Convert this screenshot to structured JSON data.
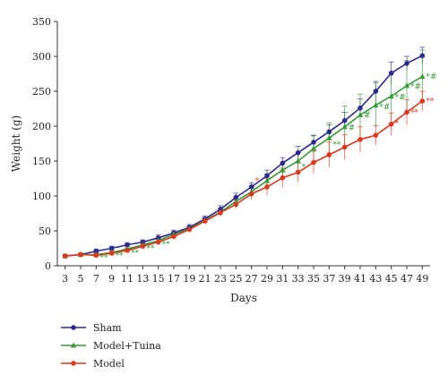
{
  "chart_data": {
    "type": "line",
    "xlabel": "Days",
    "ylabel": "Weight (g)",
    "x": [
      3,
      5,
      7,
      9,
      11,
      13,
      15,
      17,
      19,
      21,
      23,
      25,
      27,
      29,
      31,
      33,
      35,
      37,
      39,
      41,
      43,
      45,
      47,
      49
    ],
    "ylim": [
      0,
      350
    ],
    "yticks": [
      0,
      50,
      100,
      150,
      200,
      250,
      300,
      350
    ],
    "xticks": [
      3,
      5,
      7,
      9,
      11,
      13,
      15,
      17,
      19,
      21,
      23,
      25,
      27,
      29,
      31,
      33,
      35,
      37,
      39,
      41,
      43,
      45,
      47,
      49
    ],
    "grid": false,
    "legend_position": "bottom-left",
    "series": [
      {
        "name": "Sham",
        "color": "#2e2a8c",
        "marker": "circle",
        "values": [
          14,
          16,
          21,
          25,
          30,
          34,
          40,
          47,
          55,
          67,
          81,
          98,
          113,
          129,
          147,
          162,
          177,
          192,
          208,
          226,
          250,
          276,
          290,
          301
        ],
        "errors": [
          2,
          2,
          3,
          3,
          3,
          3,
          4,
          4,
          4,
          4,
          5,
          6,
          6,
          8,
          8,
          9,
          10,
          10,
          12,
          13,
          14,
          16,
          10,
          12
        ]
      },
      {
        "name": "Model+Tuina",
        "color": "#3a9a3a",
        "marker": "triangle",
        "values": [
          14,
          16,
          16,
          19,
          24,
          30,
          36,
          45,
          53,
          65,
          77,
          92,
          106,
          122,
          137,
          150,
          168,
          183,
          199,
          216,
          230,
          243,
          258,
          271
        ],
        "errors": [
          2,
          2,
          3,
          3,
          3,
          3,
          4,
          4,
          4,
          4,
          5,
          6,
          8,
          10,
          10,
          12,
          18,
          22,
          30,
          30,
          32,
          34,
          36,
          38
        ]
      },
      {
        "name": "Model",
        "color": "#d93a1f",
        "marker": "circle",
        "values": [
          14,
          16,
          15,
          18,
          22,
          28,
          34,
          42,
          52,
          64,
          76,
          88,
          103,
          113,
          126,
          134,
          148,
          159,
          170,
          181,
          187,
          203,
          220,
          236
        ],
        "errors": [
          2,
          2,
          3,
          3,
          3,
          3,
          4,
          4,
          4,
          4,
          5,
          6,
          8,
          12,
          14,
          14,
          16,
          18,
          18,
          18,
          14,
          16,
          18,
          14
        ]
      }
    ],
    "annotations": [
      {
        "text": "**",
        "x": 7,
        "y": 8,
        "color": "#3a9a3a"
      },
      {
        "text": "**",
        "x": 9,
        "y": 11,
        "color": "#3a9a3a"
      },
      {
        "text": "**",
        "x": 11,
        "y": 15,
        "color": "#3a9a3a"
      },
      {
        "text": "**",
        "x": 13,
        "y": 21,
        "color": "#3a9a3a"
      },
      {
        "text": "**",
        "x": 15,
        "y": 27,
        "color": "#3a9a3a"
      },
      {
        "text": "*",
        "x": 27,
        "y": 118,
        "color": "#d93a1f"
      },
      {
        "text": "*",
        "x": 33,
        "y": 138,
        "color": "#3a9a3a"
      },
      {
        "text": "**",
        "x": 37,
        "y": 170,
        "color": "#3a9a3a"
      },
      {
        "text": "#",
        "x": 39,
        "y": 194,
        "color": "#3a9a3a"
      },
      {
        "text": "#",
        "x": 41,
        "y": 212,
        "color": "#3a9a3a"
      },
      {
        "text": "*#",
        "x": 43,
        "y": 224,
        "color": "#3a9a3a"
      },
      {
        "text": "*#",
        "x": 45,
        "y": 238,
        "color": "#3a9a3a"
      },
      {
        "text": "*#",
        "x": 47,
        "y": 253,
        "color": "#3a9a3a"
      },
      {
        "text": "*#",
        "x": 49,
        "y": 267,
        "color": "#3a9a3a"
      },
      {
        "text": "*",
        "x": 45,
        "y": 200,
        "color": "#d93a1f"
      },
      {
        "text": "**",
        "x": 47,
        "y": 216,
        "color": "#d93a1f"
      },
      {
        "text": "**",
        "x": 49,
        "y": 232,
        "color": "#d93a1f"
      }
    ]
  }
}
